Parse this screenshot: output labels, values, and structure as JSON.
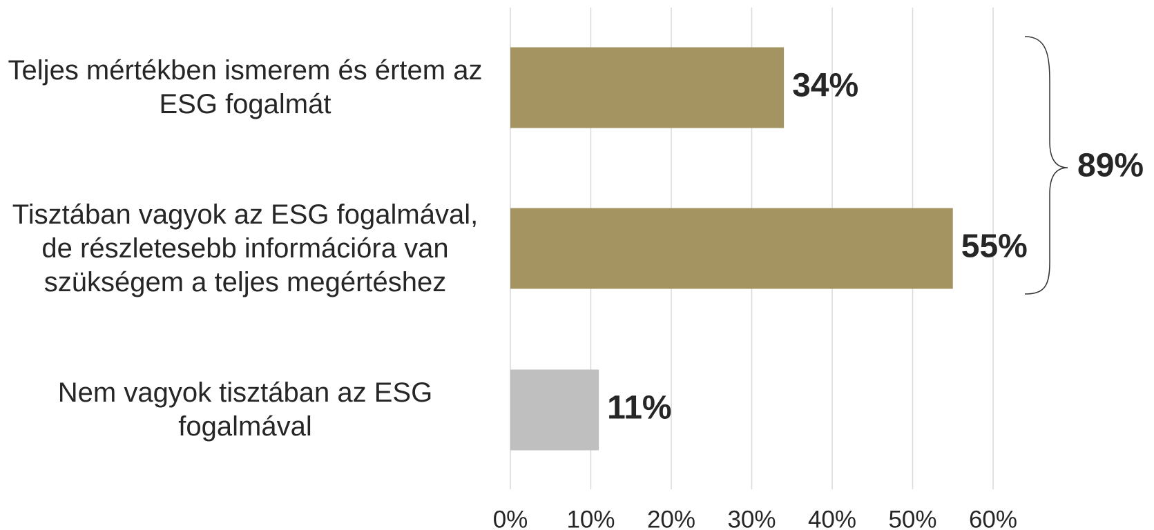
{
  "chart_data": {
    "type": "hbar",
    "categories": [
      "Teljes mértékben ismerem és értem az ESG fogalmát",
      "Tisztában vagyok az ESG fogalmával, de részletesebb információra van szükségem a teljes megértéshez",
      "Nem vagyok tisztában az ESG fogalmával"
    ],
    "values": [
      34,
      55,
      11
    ],
    "value_labels": [
      "34%",
      "55%",
      "11%"
    ],
    "colors": [
      "#a39461",
      "#a39461",
      "#bfbfbf"
    ],
    "xlim": [
      0,
      60
    ],
    "xticks": [
      {
        "value": 0,
        "label": "0%"
      },
      {
        "value": 10,
        "label": "10%"
      },
      {
        "value": 20,
        "label": "20%"
      },
      {
        "value": 30,
        "label": "30%"
      },
      {
        "value": 40,
        "label": "40%"
      },
      {
        "value": 50,
        "label": "50%"
      },
      {
        "value": 60,
        "label": "60%"
      }
    ],
    "grid": true,
    "bracket_label": "89%"
  }
}
